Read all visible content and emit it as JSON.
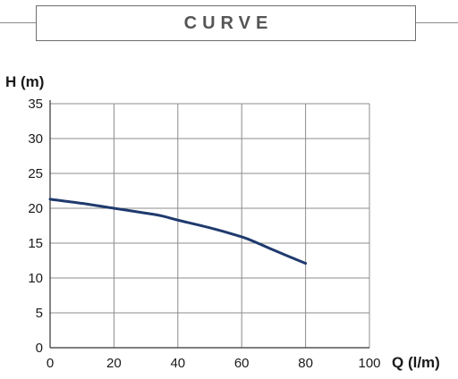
{
  "header": {
    "title": "CURVE"
  },
  "chart_data": {
    "type": "line",
    "xlabel": "Q (l/m)",
    "ylabel": "H (m)",
    "xlim": [
      0,
      100
    ],
    "ylim": [
      0,
      35
    ],
    "xticks": [
      "0",
      "20",
      "40",
      "60",
      "80",
      "100"
    ],
    "yticks": [
      "0",
      "5",
      "10",
      "15",
      "20",
      "25",
      "30",
      "35"
    ],
    "grid": true,
    "series": [
      {
        "color": "#1f3a6e",
        "x": [
          0,
          10,
          20,
          30,
          35,
          40,
          50,
          60,
          65,
          70,
          80
        ],
        "y": [
          21.3,
          20.7,
          20.0,
          19.3,
          18.9,
          18.3,
          17.2,
          15.9,
          15.0,
          14.0,
          12.1
        ]
      }
    ]
  }
}
